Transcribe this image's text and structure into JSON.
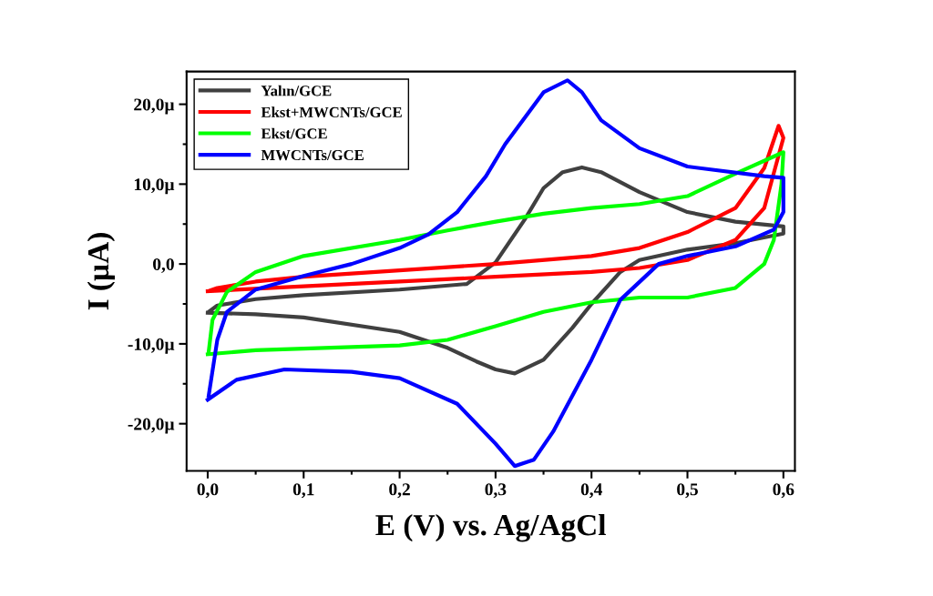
{
  "chart_data": {
    "type": "line",
    "xlabel": "E (V) vs. Ag/AgCl",
    "ylabel": "I (µA)",
    "xlim": [
      -0.022,
      0.612
    ],
    "ylim": [
      -25.9,
      24.1
    ],
    "xticks": [
      {
        "value": 0,
        "label": "0,0"
      },
      {
        "value": 0.1,
        "label": "0,1"
      },
      {
        "value": 0.2,
        "label": "0,2"
      },
      {
        "value": 0.3,
        "label": "0,3"
      },
      {
        "value": 0.4,
        "label": "0,4"
      },
      {
        "value": 0.5,
        "label": "0,5"
      },
      {
        "value": 0.6,
        "label": "0,6"
      }
    ],
    "yticks": [
      {
        "value": -20,
        "label": "-20,0µ"
      },
      {
        "value": -10,
        "label": "-10,0µ"
      },
      {
        "value": 0,
        "label": "0,0"
      },
      {
        "value": 10,
        "label": "10,0µ"
      },
      {
        "value": 20,
        "label": "20,0µ"
      }
    ],
    "grid": false,
    "legend": "top left",
    "marker": "none",
    "line_style": "solid",
    "series": [
      {
        "name": "Yalın/GCE",
        "color": "#404040",
        "x": [
          0,
          0.05,
          0.1,
          0.2,
          0.25,
          0.28,
          0.3,
          0.32,
          0.35,
          0.38,
          0.4,
          0.43,
          0.45,
          0.5,
          0.55,
          0.6,
          0.6,
          0.55,
          0.5,
          0.45,
          0.41,
          0.39,
          0.37,
          0.35,
          0.33,
          0.3,
          0.27,
          0.2,
          0.1,
          0.05,
          0.01,
          0.002
        ],
        "values": [
          -6.1,
          -6.3,
          -6.7,
          -8.5,
          -10.5,
          -12.2,
          -13.2,
          -13.7,
          -12,
          -8,
          -5,
          -1,
          0.5,
          1.8,
          2.6,
          3.8,
          4.7,
          5.3,
          6.5,
          9,
          11.5,
          12.1,
          11.5,
          9.5,
          5.5,
          0.2,
          -2.5,
          -3.2,
          -3.9,
          -4.4,
          -5.2,
          -5.9
        ]
      },
      {
        "name": "Ekst+MWCNTs/GCE",
        "color": "#ff0000",
        "x": [
          0,
          0.1,
          0.2,
          0.3,
          0.4,
          0.45,
          0.5,
          0.55,
          0.58,
          0.6,
          0.595,
          0.58,
          0.55,
          0.5,
          0.45,
          0.4,
          0.3,
          0.2,
          0.1,
          0.05,
          0.01,
          0.003
        ],
        "values": [
          -3.4,
          -2.8,
          -2.2,
          -1.6,
          -1,
          -0.5,
          0.5,
          3,
          7,
          15.8,
          17.3,
          12,
          7,
          4,
          2,
          1,
          0,
          -0.8,
          -1.6,
          -2.2,
          -3,
          -3.3
        ]
      },
      {
        "name": "Ekst/GCE",
        "color": "#00ff00",
        "x": [
          0,
          0.05,
          0.1,
          0.2,
          0.25,
          0.3,
          0.35,
          0.4,
          0.45,
          0.5,
          0.55,
          0.58,
          0.59,
          0.598,
          0.6,
          0.55,
          0.5,
          0.45,
          0.4,
          0.35,
          0.3,
          0.25,
          0.2,
          0.1,
          0.05,
          0.02,
          0.005,
          0.001
        ],
        "values": [
          -11.3,
          -10.8,
          -10.6,
          -10.2,
          -9.5,
          -7.8,
          -6,
          -4.8,
          -4.2,
          -4.2,
          -3,
          0,
          3,
          10,
          14,
          11.3,
          8.5,
          7.5,
          7,
          6.3,
          5.3,
          4.2,
          3,
          1,
          -1,
          -3.5,
          -7,
          -11
        ]
      },
      {
        "name": "MWCNTs/GCE",
        "color": "#0000ff",
        "x": [
          0,
          0.03,
          0.08,
          0.15,
          0.2,
          0.26,
          0.3,
          0.32,
          0.34,
          0.36,
          0.4,
          0.43,
          0.47,
          0.5,
          0.55,
          0.59,
          0.6,
          0.6,
          0.58,
          0.5,
          0.45,
          0.41,
          0.39,
          0.375,
          0.35,
          0.31,
          0.29,
          0.26,
          0.23,
          0.2,
          0.15,
          0.1,
          0.05,
          0.02,
          0.01,
          0.001
        ],
        "values": [
          -17,
          -14.5,
          -13.2,
          -13.5,
          -14.3,
          -17.5,
          -22.5,
          -25.3,
          -24.5,
          -21,
          -12,
          -4.5,
          0,
          1,
          2.2,
          4.3,
          6.5,
          10.8,
          11,
          12.2,
          14.5,
          18,
          21.5,
          23,
          21.5,
          15,
          11,
          6.5,
          3.7,
          2,
          0,
          -1.5,
          -3.2,
          -6,
          -9.5,
          -16.5
        ]
      }
    ]
  }
}
